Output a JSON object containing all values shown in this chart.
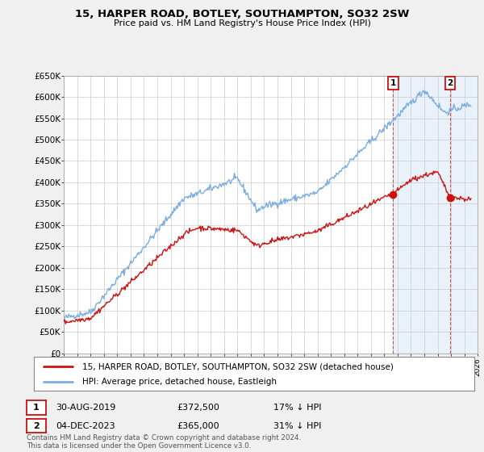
{
  "title": "15, HARPER ROAD, BOTLEY, SOUTHAMPTON, SO32 2SW",
  "subtitle": "Price paid vs. HM Land Registry's House Price Index (HPI)",
  "ylabel_ticks": [
    "£0",
    "£50K",
    "£100K",
    "£150K",
    "£200K",
    "£250K",
    "£300K",
    "£350K",
    "£400K",
    "£450K",
    "£500K",
    "£550K",
    "£600K",
    "£650K"
  ],
  "ytick_values": [
    0,
    50000,
    100000,
    150000,
    200000,
    250000,
    300000,
    350000,
    400000,
    450000,
    500000,
    550000,
    600000,
    650000
  ],
  "hpi_color": "#7aadde",
  "price_color": "#cc1111",
  "marker1_date": 2019.66,
  "marker1_price": 372500,
  "marker1_label": "30-AUG-2019",
  "marker1_note": "£372,500",
  "marker1_pct": "17% ↓ HPI",
  "marker2_date": 2023.92,
  "marker2_price": 365000,
  "marker2_label": "04-DEC-2023",
  "marker2_note": "£365,000",
  "marker2_pct": "31% ↓ HPI",
  "legend_line1": "15, HARPER ROAD, BOTLEY, SOUTHAMPTON, SO32 2SW (detached house)",
  "legend_line2": "HPI: Average price, detached house, Eastleigh",
  "footer": "Contains HM Land Registry data © Crown copyright and database right 2024.\nThis data is licensed under the Open Government Licence v3.0.",
  "background_color": "#f0f0f0",
  "plot_bg": "#ffffff",
  "highlight_bg": "#ddeeff",
  "xmin": 1995,
  "xmax": 2026,
  "ymin": 0,
  "ymax": 650000
}
